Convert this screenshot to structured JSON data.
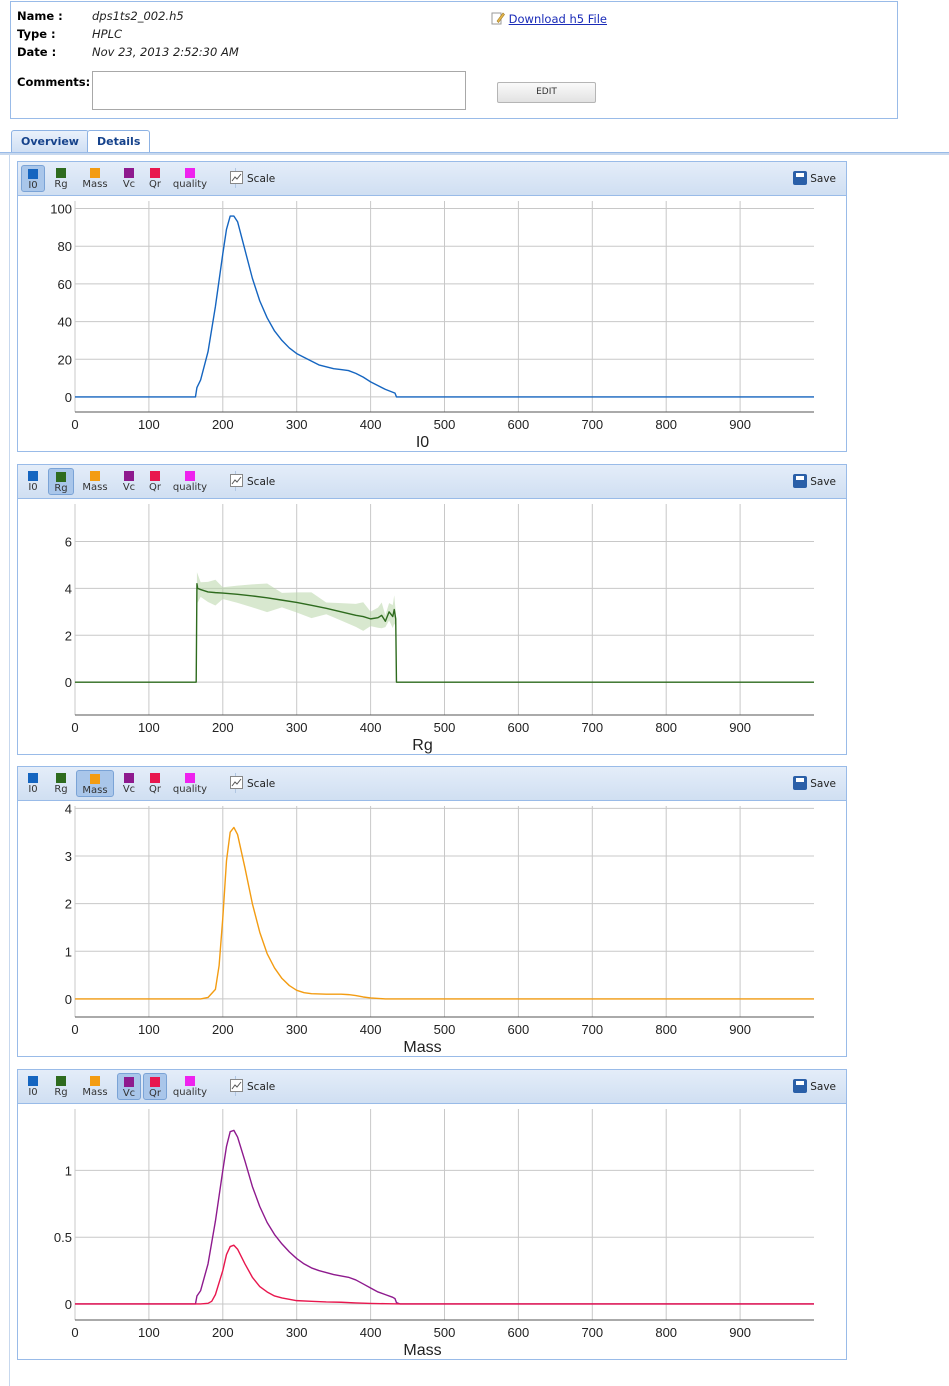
{
  "file": {
    "name_label": "Name :",
    "name_value": "dps1ts2_002.h5",
    "type_label": "Type :",
    "type_value": "HPLC",
    "date_label": "Date :",
    "date_value": "Nov 23, 2013 2:52:30 AM",
    "download_label": "Download h5 File",
    "comments_label": "Comments:",
    "comments_value": "",
    "edit_label": "EDIT"
  },
  "tabs": [
    {
      "label": "Overview",
      "active": false
    },
    {
      "label": "Details",
      "active": true
    }
  ],
  "toolbar": {
    "series_buttons": [
      {
        "label": "I0",
        "color": "#1565c0"
      },
      {
        "label": "Rg",
        "color": "#2e6b1e"
      },
      {
        "label": "Mass",
        "color": "#f39c12"
      },
      {
        "label": "Vc",
        "color": "#8e1a8e"
      },
      {
        "label": "Qr",
        "color": "#e8174e"
      },
      {
        "label": "quality",
        "color": "#ee22ee"
      }
    ],
    "scale_label": "Scale",
    "save_label": "Save"
  },
  "chart_data": [
    {
      "type": "line",
      "selected": [
        "I0"
      ],
      "xlabel": "I0",
      "ylabel": "",
      "xlim": [
        0,
        1000
      ],
      "ylim": [
        -8,
        104
      ],
      "xticks": [
        0,
        100,
        200,
        300,
        400,
        500,
        600,
        700,
        800,
        900
      ],
      "yticks": [
        0,
        20,
        40,
        60,
        80,
        100
      ],
      "grid": true,
      "series": [
        {
          "color": "#1565c0",
          "x": [
            0,
            163,
            165,
            170,
            180,
            190,
            200,
            205,
            210,
            215,
            220,
            230,
            240,
            250,
            260,
            270,
            280,
            290,
            300,
            310,
            320,
            330,
            340,
            350,
            360,
            370,
            380,
            390,
            400,
            410,
            420,
            430,
            433,
            435,
            440,
            1000
          ],
          "y": [
            0,
            0,
            5,
            9,
            24,
            48,
            76,
            89,
            96,
            96,
            93,
            78,
            63,
            51,
            42,
            35,
            30,
            26,
            23,
            21,
            19,
            17,
            16,
            15,
            14.5,
            14,
            12.5,
            10.5,
            8,
            6,
            4,
            2.5,
            2,
            0,
            0,
            0
          ]
        }
      ]
    },
    {
      "type": "line",
      "selected": [
        "Rg"
      ],
      "xlabel": "Rg",
      "ylabel": "",
      "xlim": [
        0,
        1000
      ],
      "ylim": [
        -1.4,
        7.6
      ],
      "xticks": [
        0,
        100,
        200,
        300,
        400,
        500,
        600,
        700,
        800,
        900
      ],
      "yticks": [
        0,
        2,
        4,
        6
      ],
      "grid": true,
      "series": [
        {
          "color": "#2e6b1e",
          "band": "#b8d6a8",
          "x": [
            0,
            164,
            165,
            166,
            170,
            180,
            190,
            200,
            220,
            240,
            260,
            280,
            300,
            320,
            340,
            360,
            380,
            390,
            400,
            410,
            415,
            420,
            425,
            430,
            432,
            434,
            435,
            1000
          ],
          "y": [
            0,
            0,
            4.2,
            4.0,
            3.95,
            3.85,
            3.82,
            3.8,
            3.75,
            3.68,
            3.6,
            3.5,
            3.4,
            3.28,
            3.15,
            3.0,
            2.85,
            2.8,
            2.7,
            2.75,
            2.85,
            2.6,
            3.0,
            2.8,
            3.1,
            2.7,
            0,
            0
          ]
        }
      ]
    },
    {
      "type": "line",
      "selected": [
        "Mass"
      ],
      "xlabel": "Mass",
      "ylabel": "",
      "xlim": [
        0,
        1000
      ],
      "ylim": [
        -0.38,
        4.05
      ],
      "xticks": [
        0,
        100,
        200,
        300,
        400,
        500,
        600,
        700,
        800,
        900
      ],
      "yticks": [
        0,
        1,
        2,
        3,
        4
      ],
      "grid": true,
      "series": [
        {
          "color": "#f39c12",
          "x": [
            0,
            170,
            180,
            190,
            195,
            200,
            205,
            210,
            215,
            220,
            230,
            240,
            250,
            260,
            270,
            280,
            290,
            300,
            310,
            320,
            340,
            360,
            370,
            380,
            390,
            400,
            410,
            420,
            440,
            1000
          ],
          "y": [
            0,
            0,
            0.03,
            0.2,
            0.7,
            1.7,
            2.9,
            3.5,
            3.6,
            3.45,
            2.75,
            2.0,
            1.4,
            0.95,
            0.65,
            0.43,
            0.28,
            0.18,
            0.13,
            0.11,
            0.1,
            0.1,
            0.09,
            0.07,
            0.04,
            0.02,
            0.01,
            0,
            0,
            0
          ]
        }
      ]
    },
    {
      "type": "line",
      "selected": [
        "Vc",
        "Qr"
      ],
      "xlabel": "Mass",
      "ylabel": "",
      "xlim": [
        0,
        1000
      ],
      "ylim": [
        -0.12,
        1.46
      ],
      "xticks": [
        0,
        100,
        200,
        300,
        400,
        500,
        600,
        700,
        800,
        900
      ],
      "yticks": [
        0,
        0.5,
        1
      ],
      "grid": true,
      "series": [
        {
          "color": "#8e1a8e",
          "x": [
            0,
            163,
            165,
            170,
            180,
            190,
            200,
            205,
            210,
            215,
            220,
            230,
            240,
            250,
            260,
            270,
            280,
            290,
            300,
            310,
            320,
            330,
            340,
            350,
            360,
            370,
            380,
            390,
            400,
            410,
            420,
            430,
            433,
            435,
            440,
            1000
          ],
          "y": [
            0,
            0,
            0.06,
            0.1,
            0.3,
            0.62,
            1.0,
            1.18,
            1.29,
            1.3,
            1.25,
            1.07,
            0.88,
            0.73,
            0.61,
            0.52,
            0.45,
            0.39,
            0.34,
            0.3,
            0.27,
            0.25,
            0.235,
            0.22,
            0.21,
            0.2,
            0.18,
            0.15,
            0.12,
            0.09,
            0.07,
            0.05,
            0.04,
            0.01,
            0,
            0
          ]
        },
        {
          "color": "#e8174e",
          "x": [
            0,
            170,
            180,
            185,
            190,
            200,
            205,
            210,
            215,
            220,
            230,
            240,
            250,
            260,
            270,
            280,
            290,
            300,
            320,
            340,
            360,
            380,
            400,
            420,
            440,
            1000
          ],
          "y": [
            0,
            0,
            0.005,
            0.02,
            0.07,
            0.25,
            0.37,
            0.43,
            0.44,
            0.41,
            0.3,
            0.2,
            0.13,
            0.09,
            0.06,
            0.045,
            0.035,
            0.025,
            0.02,
            0.015,
            0.013,
            0.008,
            0.004,
            0.002,
            0,
            0
          ]
        }
      ]
    }
  ]
}
